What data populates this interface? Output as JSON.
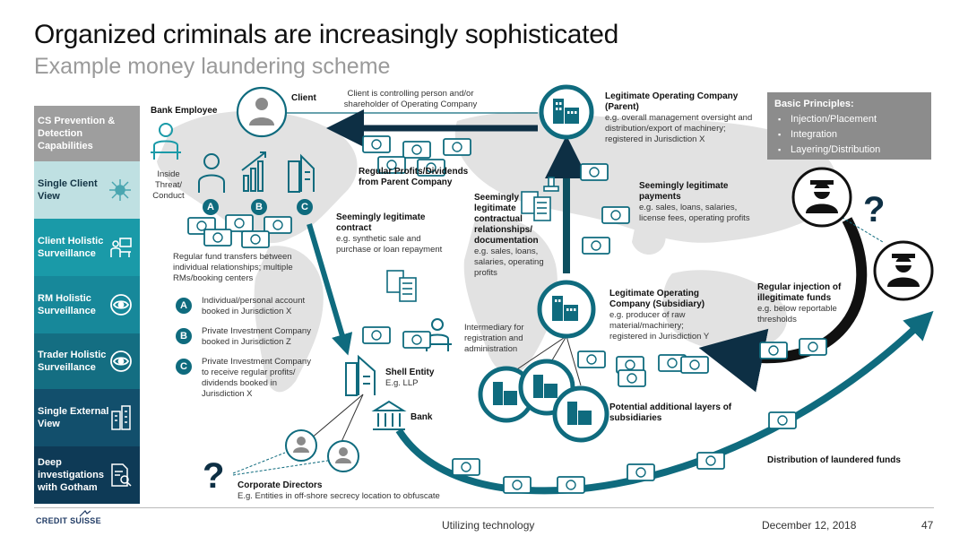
{
  "header": {
    "title": "Organized criminals are increasingly sophisticated",
    "subtitle": "Example money laundering scheme"
  },
  "sidebar": {
    "items": [
      {
        "label": "CS Prevention & Detection Capabilities",
        "color": "#9e9e9e",
        "text_color": "#ffffff",
        "icon": ""
      },
      {
        "label": "Single Client View",
        "color": "#bfe0e2",
        "text_color": "#123344",
        "icon": "network-icon"
      },
      {
        "label": "Client Holistic Surveillance",
        "color": "#1a9aa8",
        "text_color": "#ffffff",
        "icon": "presenter-icon"
      },
      {
        "label": "RM Holistic Surveillance",
        "color": "#17889a",
        "text_color": "#ffffff",
        "icon": "eye-icon"
      },
      {
        "label": "Trader Holistic Surveillance",
        "color": "#146e82",
        "text_color": "#ffffff",
        "icon": "eye-icon"
      },
      {
        "label": "Single External View",
        "color": "#124f6c",
        "text_color": "#ffffff",
        "icon": "buildings-icon"
      },
      {
        "label": "Deep investigations with Gotham",
        "color": "#0e3a56",
        "text_color": "#ffffff",
        "icon": "document-search-icon"
      }
    ]
  },
  "principles": {
    "heading": "Basic Principles:",
    "items": [
      "Injection/Placement",
      "Integration",
      "Layering/Distribution"
    ]
  },
  "nodes": {
    "client": "Client",
    "client_note": "Client is controlling person and/or shareholder of Operating Company",
    "bank_employee": "Bank Employee",
    "inside_threat": "Inside Threat/ Conduct",
    "parent": {
      "title": "Legitimate Operating Company (Parent)",
      "desc": "e.g. overall management oversight and distribution/export of machinery; registered in Jurisdiction X"
    },
    "regular_profits": "Regular Profits/Dividends from Parent Company",
    "payments": {
      "title": "Seemingly legitimate payments",
      "desc": "e.g. sales, loans, salaries, license fees, operating profits"
    },
    "contractual": {
      "title": "Seemingly legitimate contractual relationships/ documentation",
      "desc": "e.g. sales, loans, salaries, operating profits"
    },
    "contract": {
      "title": "Seemingly legitimate contract",
      "desc": "e.g. synthetic sale and purchase or loan repayment"
    },
    "fund_transfers": "Regular fund transfers between individual relationships; multiple RMs/booking centers",
    "accounts": [
      {
        "badge": "A",
        "text": "Individual/personal account booked in Jurisdiction X"
      },
      {
        "badge": "B",
        "text": "Private Investment Company booked in Jurisdiction Z"
      },
      {
        "badge": "C",
        "text": "Private Investment Company to receive regular profits/ dividends booked in Jurisdiction X"
      }
    ],
    "intermediary": "Intermediary for registration and administration",
    "shell": {
      "title": "Shell Entity",
      "desc": "E.g. LLP"
    },
    "bank": "Bank",
    "subsidiary": {
      "title": "Legitimate Operating Company (Subsidiary)",
      "desc": "e.g. producer of raw material/machinery; registered in Jurisdiction Y"
    },
    "additional_layers": "Potential additional layers of subsidiaries",
    "injection": {
      "title": "Regular injection of illegitimate funds",
      "desc": "e.g. below reportable thresholds"
    },
    "distribution": "Distribution of laundered funds",
    "corporate_directors": {
      "title": "Corporate Directors",
      "desc": "E.g. Entities in off-shore secrecy location to obfuscate"
    },
    "question_mark": "?"
  },
  "footer": {
    "logo": "CREDIT SUISSE",
    "center": "Utilizing technology",
    "date": "December 12, 2018",
    "page": "47"
  },
  "colors": {
    "teal": "#0f6b7e",
    "dark_teal": "#0d4f5f",
    "navy": "#0d2f44",
    "map": "#e4e4e4"
  }
}
